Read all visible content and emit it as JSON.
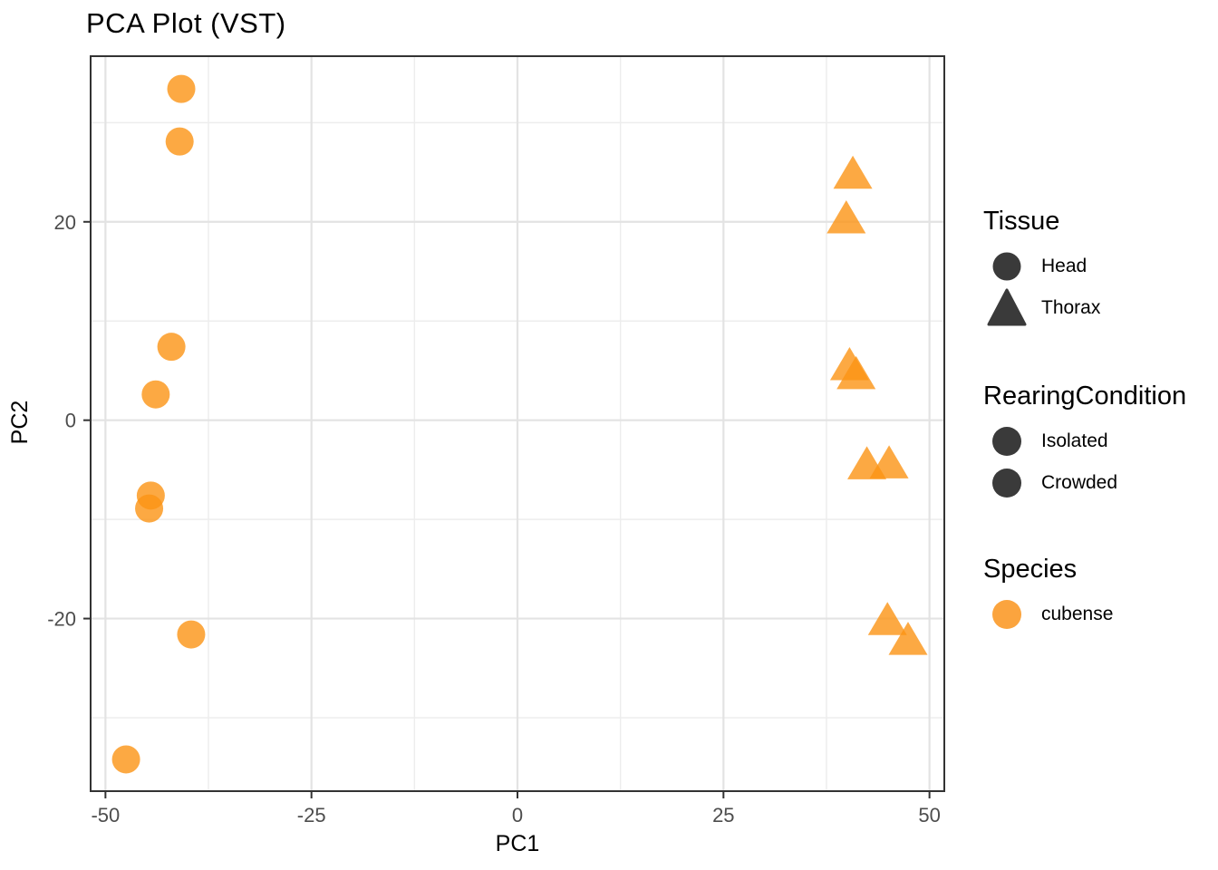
{
  "title": "PCA Plot (VST)",
  "chart_data": {
    "type": "scatter",
    "title": "PCA Plot (VST)",
    "xlabel": "PC1",
    "ylabel": "PC2",
    "xlim": [
      -51.8,
      51.8
    ],
    "ylim": [
      -37.4,
      36.7
    ],
    "x_ticks": [
      -50,
      -25,
      0,
      25,
      50
    ],
    "x_minor": [
      -37.5,
      -12.5,
      12.5,
      37.5
    ],
    "y_ticks": [
      -20,
      0,
      20
    ],
    "y_minor": [
      -30,
      -10,
      10,
      30
    ],
    "grid": true,
    "legend_position": "right",
    "point_color": "#fb9414",
    "point_alpha": 0.8,
    "series": [
      {
        "name": "Head",
        "shape": "circle",
        "species": "cubense",
        "points": [
          [
            -40.8,
            33.4
          ],
          [
            -41.0,
            28.1
          ],
          [
            -42.0,
            7.4
          ],
          [
            -43.9,
            2.6
          ],
          [
            -44.5,
            -7.6
          ],
          [
            -44.7,
            -8.9
          ],
          [
            -39.6,
            -21.6
          ],
          [
            -47.5,
            -34.2
          ]
        ]
      },
      {
        "name": "Thorax",
        "shape": "triangle",
        "species": "cubense",
        "points": [
          [
            40.7,
            24.8
          ],
          [
            39.9,
            20.3
          ],
          [
            40.3,
            5.5
          ],
          [
            41.1,
            4.6
          ],
          [
            42.4,
            -4.5
          ],
          [
            45.1,
            -4.4
          ],
          [
            44.9,
            -20.2
          ],
          [
            47.4,
            -22.2
          ]
        ]
      }
    ]
  },
  "axes": {
    "x_label": "PC1",
    "y_label": "PC2"
  },
  "legend": {
    "sections": [
      {
        "title": "Tissue",
        "items": [
          {
            "label": "Head",
            "shape": "circle",
            "color": "#3a3a3a"
          },
          {
            "label": "Thorax",
            "shape": "triangle",
            "color": "#3a3a3a"
          }
        ]
      },
      {
        "title": "RearingCondition",
        "items": [
          {
            "label": "Isolated",
            "shape": "circle",
            "color": "#3a3a3a"
          },
          {
            "label": "Crowded",
            "shape": "circle",
            "color": "#3a3a3a"
          }
        ]
      },
      {
        "title": "Species",
        "items": [
          {
            "label": "cubense",
            "shape": "circle",
            "color": "#fba43e"
          }
        ]
      }
    ]
  },
  "colors": {
    "grid_major": "#e3e3e3",
    "grid_minor": "#ededed",
    "panel_border": "#333333",
    "tick": "#333333"
  }
}
